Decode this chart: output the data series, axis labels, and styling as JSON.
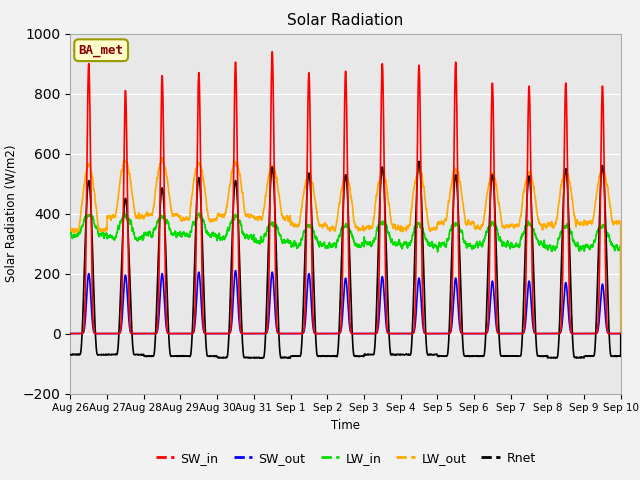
{
  "title": "Solar Radiation",
  "ylabel": "Solar Radiation (W/m2)",
  "xlabel": "Time",
  "ylim": [
    -200,
    1000
  ],
  "plot_bg": "#e8e8e8",
  "fig_bg": "#f2f2f2",
  "annotation_text": "BA_met",
  "annotation_facecolor": "#ffffcc",
  "annotation_edgecolor": "#999900",
  "annotation_textcolor": "#8B0000",
  "tick_labels": [
    "Aug 26",
    "Aug 27",
    "Aug 28",
    "Aug 29",
    "Aug 30",
    "Aug 31",
    "Sep 1",
    "Sep 2",
    "Sep 3",
    "Sep 4",
    "Sep 5",
    "Sep 6",
    "Sep 7",
    "Sep 8",
    "Sep 9",
    "Sep 10"
  ],
  "series": {
    "SW_in": {
      "color": "#ff0000",
      "lw": 1.2
    },
    "SW_out": {
      "color": "#0000ff",
      "lw": 1.2
    },
    "LW_in": {
      "color": "#00dd00",
      "lw": 1.2
    },
    "LW_out": {
      "color": "#ffaa00",
      "lw": 1.2
    },
    "Rnet": {
      "color": "#000000",
      "lw": 1.2
    }
  },
  "n_days": 15,
  "ppd": 288,
  "SW_in_peaks": [
    900,
    810,
    860,
    870,
    905,
    940,
    870,
    875,
    900,
    895,
    905,
    835,
    825,
    835,
    825
  ],
  "SW_out_peaks": [
    200,
    195,
    200,
    205,
    210,
    205,
    200,
    185,
    190,
    185,
    185,
    175,
    175,
    170,
    165
  ],
  "LW_in_base": [
    330,
    320,
    330,
    325,
    320,
    305,
    295,
    295,
    300,
    295,
    295,
    295,
    295,
    290,
    290
  ],
  "LW_out_base": [
    345,
    390,
    395,
    380,
    395,
    385,
    360,
    350,
    355,
    350,
    370,
    355,
    360,
    365,
    370
  ],
  "LW_in_peak": [
    395,
    395,
    390,
    390,
    390,
    370,
    360,
    360,
    370,
    360,
    370,
    365,
    365,
    360,
    360
  ],
  "LW_out_peak": [
    560,
    575,
    575,
    570,
    570,
    560,
    530,
    525,
    535,
    545,
    545,
    530,
    535,
    540,
    545
  ],
  "Rnet_peaks": [
    510,
    450,
    485,
    520,
    510,
    555,
    535,
    530,
    555,
    575,
    530,
    530,
    525,
    550,
    560
  ],
  "Rnet_night": [
    -70,
    -70,
    -75,
    -75,
    -80,
    -80,
    -75,
    -75,
    -70,
    -70,
    -75,
    -75,
    -75,
    -80,
    -75
  ]
}
